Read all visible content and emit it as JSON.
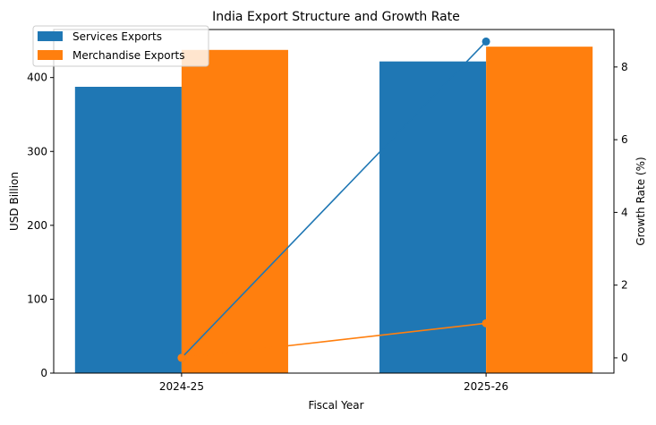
{
  "chart_data": {
    "type": "bar",
    "title": "India Export Structure and Growth Rate",
    "xlabel": "Fiscal Year",
    "ylabel": "USD Billion",
    "y2label": "Growth Rate (%)",
    "categories": [
      "2024-25",
      "2025-26"
    ],
    "ylim": [
      0,
      465
    ],
    "y2lim": [
      -0.42,
      9.03
    ],
    "yticks": [
      0,
      100,
      200,
      300,
      400
    ],
    "y2ticks": [
      0,
      2,
      4,
      6,
      8
    ],
    "grid": false,
    "legend_position": "top-left",
    "series": [
      {
        "name": "Services Exports",
        "kind": "bar",
        "axis": "left",
        "color": "#1f77b4",
        "values": [
          387.5,
          421.8
        ]
      },
      {
        "name": "Merchandise Exports",
        "kind": "bar",
        "axis": "left",
        "color": "#ff7f0e",
        "values": [
          437.4,
          441.8
        ]
      }
    ],
    "growth_lines": [
      {
        "color": "#1f77b4",
        "axis": "right",
        "values": [
          0.0,
          8.7
        ]
      },
      {
        "color": "#ff7f0e",
        "axis": "right",
        "values": [
          0.0,
          0.95
        ]
      }
    ]
  }
}
